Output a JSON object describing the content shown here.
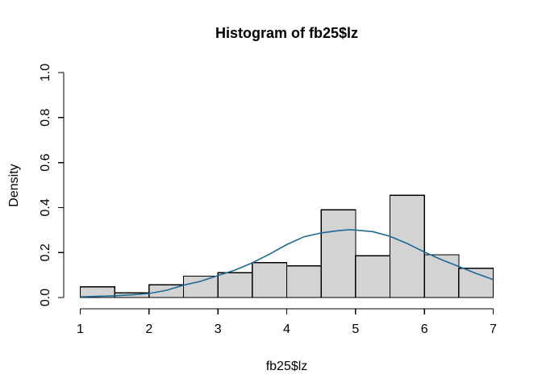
{
  "window": {
    "background": "#ffffff",
    "foreground": "#000000"
  },
  "chart_data": {
    "type": "bar",
    "subtype": "histogram-with-density-curve",
    "title": "Histogram of fb25$lz",
    "xlabel": "fb25$lz",
    "ylabel": "Density",
    "x_ticks": [
      "1",
      "2",
      "3",
      "4",
      "5",
      "6",
      "7"
    ],
    "y_ticks": [
      "0.0",
      "0.2",
      "0.4",
      "0.6",
      "0.8",
      "1.0"
    ],
    "xlim": [
      1,
      7
    ],
    "ylim": [
      0,
      1
    ],
    "grid": false,
    "legend": "none",
    "bin_width": 0.5,
    "bar_fill": "#d3d3d3",
    "bar_border": "#000000",
    "bins": [
      {
        "x0": 1.0,
        "x1": 1.5,
        "density": 0.048
      },
      {
        "x0": 1.5,
        "x1": 2.0,
        "density": 0.02
      },
      {
        "x0": 2.0,
        "x1": 2.5,
        "density": 0.056
      },
      {
        "x0": 2.5,
        "x1": 3.0,
        "density": 0.095
      },
      {
        "x0": 3.0,
        "x1": 3.5,
        "density": 0.11
      },
      {
        "x0": 3.5,
        "x1": 4.0,
        "density": 0.155
      },
      {
        "x0": 4.0,
        "x1": 4.5,
        "density": 0.14
      },
      {
        "x0": 4.5,
        "x1": 5.0,
        "density": 0.39
      },
      {
        "x0": 5.0,
        "x1": 5.5,
        "density": 0.185
      },
      {
        "x0": 5.5,
        "x1": 6.0,
        "density": 0.455
      },
      {
        "x0": 6.0,
        "x1": 6.5,
        "density": 0.19
      },
      {
        "x0": 6.5,
        "x1": 7.0,
        "density": 0.13
      }
    ],
    "density_curve": {
      "color": "#1d6a96",
      "points": [
        [
          1.0,
          0.003
        ],
        [
          1.25,
          0.005
        ],
        [
          1.5,
          0.008
        ],
        [
          1.75,
          0.012
        ],
        [
          2.0,
          0.018
        ],
        [
          2.25,
          0.032
        ],
        [
          2.5,
          0.055
        ],
        [
          2.75,
          0.072
        ],
        [
          3.0,
          0.098
        ],
        [
          3.25,
          0.122
        ],
        [
          3.5,
          0.154
        ],
        [
          3.75,
          0.193
        ],
        [
          4.0,
          0.235
        ],
        [
          4.25,
          0.27
        ],
        [
          4.5,
          0.287
        ],
        [
          4.75,
          0.297
        ],
        [
          4.9,
          0.301
        ],
        [
          5.0,
          0.3
        ],
        [
          5.25,
          0.293
        ],
        [
          5.5,
          0.272
        ],
        [
          5.75,
          0.24
        ],
        [
          6.0,
          0.202
        ],
        [
          6.25,
          0.168
        ],
        [
          6.5,
          0.138
        ],
        [
          6.75,
          0.107
        ],
        [
          7.0,
          0.08
        ]
      ]
    }
  }
}
